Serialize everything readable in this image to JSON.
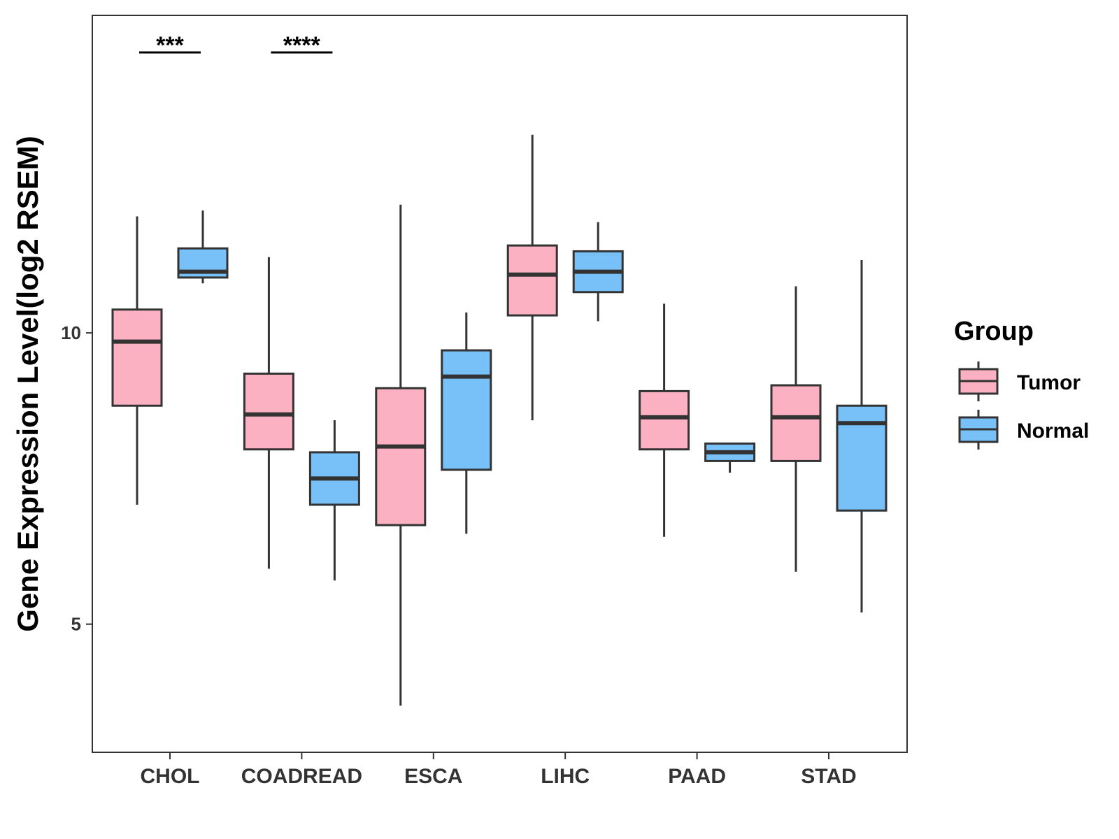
{
  "chart_data": {
    "type": "boxplot",
    "title": "",
    "xlabel": "",
    "ylabel": "Gene Expression Level(log2 RSEM)",
    "ylim": [
      2.8,
      15.45
    ],
    "yticks": [
      5,
      10
    ],
    "categories": [
      "CHOL",
      "COADREAD",
      "ESCA",
      "LIHC",
      "PAAD",
      "STAD"
    ],
    "legend": {
      "title": "Group",
      "position": "right",
      "entries": [
        {
          "name": "Tumor",
          "color": "#FBB1C2"
        },
        {
          "name": "Normal",
          "color": "#78C1F8"
        }
      ]
    },
    "series": [
      {
        "name": "Tumor",
        "color": "#FBB1C2",
        "boxes": [
          {
            "category": "CHOL",
            "min": 7.05,
            "q1": 8.75,
            "median": 9.85,
            "q3": 10.4,
            "max": 12.0
          },
          {
            "category": "COADREAD",
            "min": 5.95,
            "q1": 8.0,
            "median": 8.6,
            "q3": 9.3,
            "max": 11.3
          },
          {
            "category": "ESCA",
            "min": 3.6,
            "q1": 6.7,
            "median": 8.05,
            "q3": 9.05,
            "max": 12.2
          },
          {
            "category": "LIHC",
            "min": 8.5,
            "q1": 10.3,
            "median": 11.0,
            "q3": 11.5,
            "max": 13.4
          },
          {
            "category": "PAAD",
            "min": 6.5,
            "q1": 8.0,
            "median": 8.55,
            "q3": 9.0,
            "max": 10.5
          },
          {
            "category": "STAD",
            "min": 5.9,
            "q1": 7.8,
            "median": 8.55,
            "q3": 9.1,
            "max": 10.8
          }
        ]
      },
      {
        "name": "Normal",
        "color": "#78C1F8",
        "boxes": [
          {
            "category": "CHOL",
            "min": 10.85,
            "q1": 10.95,
            "median": 11.05,
            "q3": 11.45,
            "max": 12.1
          },
          {
            "category": "COADREAD",
            "min": 5.75,
            "q1": 7.05,
            "median": 7.5,
            "q3": 7.95,
            "max": 8.5
          },
          {
            "category": "ESCA",
            "min": 6.55,
            "q1": 7.65,
            "median": 9.25,
            "q3": 9.7,
            "max": 10.35
          },
          {
            "category": "LIHC",
            "min": 10.2,
            "q1": 10.7,
            "median": 11.05,
            "q3": 11.4,
            "max": 11.9
          },
          {
            "category": "PAAD",
            "min": 7.6,
            "q1": 7.8,
            "median": 7.95,
            "q3": 8.1,
            "max": 8.1
          },
          {
            "category": "STAD",
            "min": 5.2,
            "q1": 6.95,
            "median": 8.45,
            "q3": 8.75,
            "max": 11.25
          }
        ]
      }
    ],
    "annotations": [
      {
        "category": "CHOL",
        "label": "***"
      },
      {
        "category": "COADREAD",
        "label": "****"
      }
    ]
  }
}
